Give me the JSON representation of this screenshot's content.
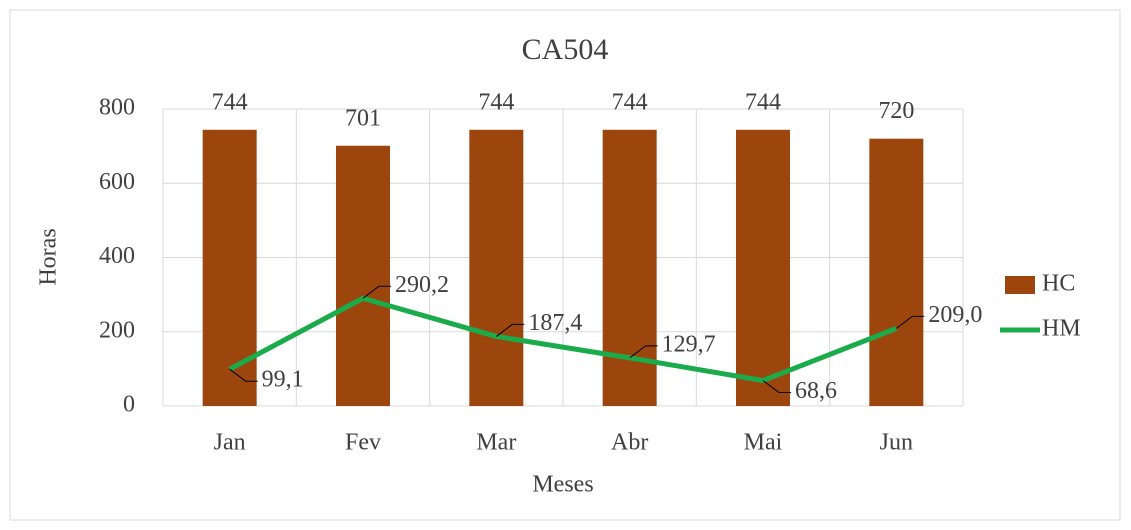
{
  "chart_data": {
    "type": "bar",
    "title": "CA504",
    "x_label": "Meses",
    "y_label": "Horas",
    "categories": [
      "Jan",
      "Fev",
      "Mar",
      "Abr",
      "Mai",
      "Jun"
    ],
    "series": [
      {
        "name": "HC",
        "type": "bar",
        "color": "#9c460d",
        "values": [
          744,
          701,
          744,
          744,
          744,
          720
        ]
      },
      {
        "name": "HM",
        "type": "line",
        "color": "#1aab4a",
        "values": [
          99.1,
          290.2,
          187.4,
          129.7,
          68.6,
          209.0
        ],
        "value_labels": [
          "99,1",
          "290,2",
          "187,4",
          "129,7",
          "68,6",
          "209,0"
        ]
      }
    ],
    "ylim": [
      0,
      800
    ],
    "yticks": [
      0,
      200,
      400,
      600,
      800
    ],
    "grid": true,
    "legend": "right"
  }
}
